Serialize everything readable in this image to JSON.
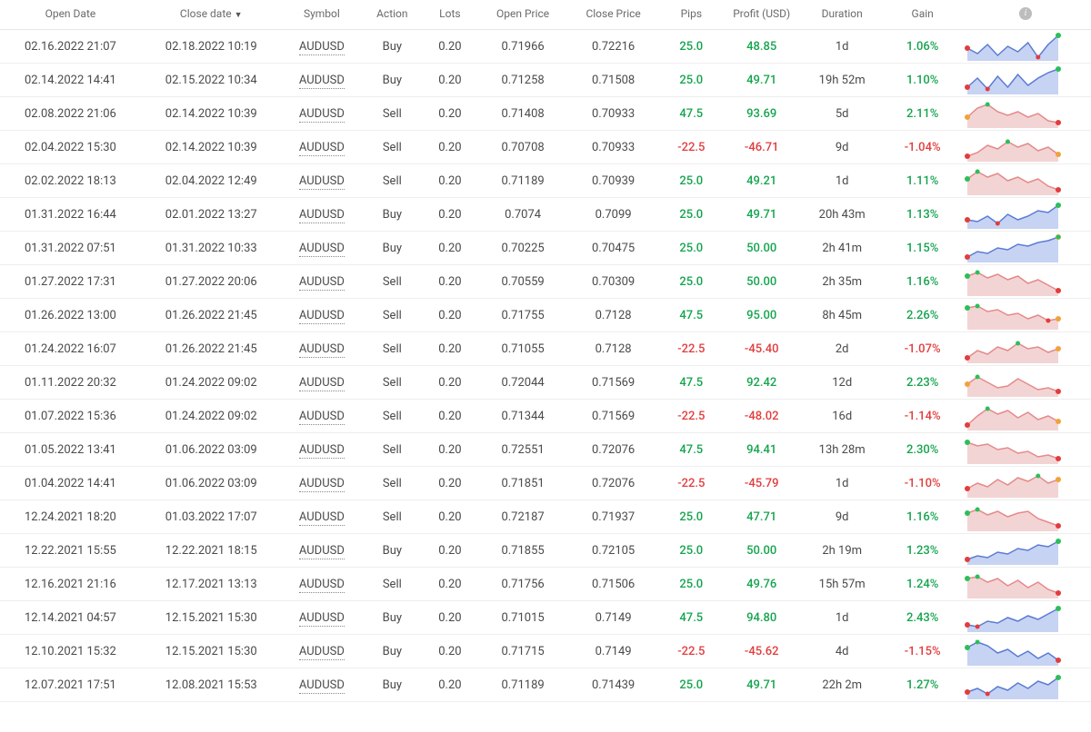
{
  "headers": {
    "open_date": "Open Date",
    "close_date": "Close date",
    "symbol": "Symbol",
    "action": "Action",
    "lots": "Lots",
    "open_price": "Open Price",
    "close_price": "Close Price",
    "pips": "Pips",
    "profit": "Profit (USD)",
    "duration": "Duration",
    "gain": "Gain",
    "sort_indicator": "▼"
  },
  "style": {
    "pos_color": "#14a44d",
    "neg_color": "#e23c3c",
    "spark_buy_stroke": "#5b7bd5",
    "spark_buy_fill": "#c7d3f2",
    "spark_sell_stroke": "#e58a8a",
    "spark_sell_fill": "#f3d4d4",
    "spark_dot_green": "#2bbf5a",
    "spark_dot_red": "#e23c3c",
    "spark_dot_orange": "#f2a23a",
    "row_border": "#eeeeee",
    "font_size_body": 13,
    "font_size_header": 12
  },
  "cols": [
    "open_date",
    "close_date",
    "symbol",
    "action",
    "lots",
    "open_price",
    "close_price",
    "pips",
    "profit",
    "duration",
    "gain"
  ],
  "rows": [
    {
      "open_date": "02.16.2022 21:07",
      "close_date": "02.18.2022 10:19",
      "symbol": "AUDUSD",
      "action": "Buy",
      "lots": "0.20",
      "open_price": "0.71966",
      "close_price": "0.72216",
      "pips": "25.0",
      "pips_cls": "pos",
      "profit": "48.85",
      "profit_cls": "pos",
      "duration": "1d",
      "gain": "1.06%",
      "gain_cls": "pos",
      "spark": {
        "type": "buy",
        "pts": [
          18,
          24,
          14,
          26,
          16,
          22,
          12,
          28,
          14,
          4
        ],
        "dot_start": "red",
        "dot_end": "green"
      }
    },
    {
      "open_date": "02.14.2022 14:41",
      "close_date": "02.15.2022 10:34",
      "symbol": "AUDUSD",
      "action": "Buy",
      "lots": "0.20",
      "open_price": "0.71258",
      "close_price": "0.71508",
      "pips": "25.0",
      "pips_cls": "pos",
      "profit": "49.71",
      "profit_cls": "pos",
      "duration": "19h 52m",
      "gain": "1.10%",
      "gain_cls": "pos",
      "spark": {
        "type": "buy",
        "pts": [
          24,
          14,
          26,
          12,
          24,
          10,
          22,
          14,
          8,
          4
        ],
        "dot_start": "red",
        "dot_end": "green"
      }
    },
    {
      "open_date": "02.08.2022 21:06",
      "close_date": "02.14.2022 10:39",
      "symbol": "AUDUSD",
      "action": "Sell",
      "lots": "0.20",
      "open_price": "0.71408",
      "close_price": "0.70933",
      "pips": "47.5",
      "pips_cls": "pos",
      "profit": "93.69",
      "profit_cls": "pos",
      "duration": "5d",
      "gain": "2.11%",
      "gain_cls": "pos",
      "spark": {
        "type": "sell",
        "pts": [
          20,
          10,
          6,
          14,
          18,
          14,
          20,
          16,
          24,
          26
        ],
        "dot_start": "orange",
        "dot_end": "red"
      }
    },
    {
      "open_date": "02.04.2022 15:30",
      "close_date": "02.14.2022 10:39",
      "symbol": "AUDUSD",
      "action": "Sell",
      "lots": "0.20",
      "open_price": "0.70708",
      "close_price": "0.70933",
      "pips": "-22.5",
      "pips_cls": "neg",
      "profit": "-46.71",
      "profit_cls": "neg",
      "duration": "9d",
      "gain": "-1.04%",
      "gain_cls": "neg",
      "spark": {
        "type": "sell",
        "pts": [
          26,
          22,
          14,
          18,
          10,
          16,
          12,
          20,
          16,
          24
        ],
        "dot_start": "red",
        "dot_end": "orange"
      }
    },
    {
      "open_date": "02.02.2022 18:13",
      "close_date": "02.04.2022 12:49",
      "symbol": "AUDUSD",
      "action": "Sell",
      "lots": "0.20",
      "open_price": "0.71189",
      "close_price": "0.70939",
      "pips": "25.0",
      "pips_cls": "pos",
      "profit": "49.21",
      "profit_cls": "pos",
      "duration": "1d",
      "gain": "1.11%",
      "gain_cls": "pos",
      "spark": {
        "type": "sell",
        "pts": [
          14,
          6,
          12,
          8,
          16,
          12,
          18,
          14,
          22,
          26
        ],
        "dot_start": "green",
        "dot_end": "red"
      }
    },
    {
      "open_date": "01.31.2022 16:44",
      "close_date": "02.01.2022 13:27",
      "symbol": "AUDUSD",
      "action": "Buy",
      "lots": "0.20",
      "open_price": "0.7074",
      "close_price": "0.7099",
      "pips": "25.0",
      "pips_cls": "pos",
      "profit": "49.71",
      "profit_cls": "pos",
      "duration": "20h 43m",
      "gain": "1.13%",
      "gain_cls": "pos",
      "spark": {
        "type": "buy",
        "pts": [
          22,
          24,
          18,
          26,
          16,
          22,
          18,
          12,
          14,
          6
        ],
        "dot_start": "red",
        "dot_end": "green"
      }
    },
    {
      "open_date": "01.31.2022 07:51",
      "close_date": "01.31.2022 10:33",
      "symbol": "AUDUSD",
      "action": "Buy",
      "lots": "0.20",
      "open_price": "0.70225",
      "close_price": "0.70475",
      "pips": "25.0",
      "pips_cls": "pos",
      "profit": "50.00",
      "profit_cls": "pos",
      "duration": "2h 41m",
      "gain": "1.15%",
      "gain_cls": "pos",
      "spark": {
        "type": "buy",
        "pts": [
          26,
          20,
          22,
          16,
          18,
          12,
          14,
          10,
          8,
          4
        ],
        "dot_start": "red",
        "dot_end": "orange"
      }
    },
    {
      "open_date": "01.27.2022 17:31",
      "close_date": "01.27.2022 20:06",
      "symbol": "AUDUSD",
      "action": "Sell",
      "lots": "0.20",
      "open_price": "0.70559",
      "close_price": "0.70309",
      "pips": "25.0",
      "pips_cls": "pos",
      "profit": "50.00",
      "profit_cls": "pos",
      "duration": "2h 35m",
      "gain": "1.16%",
      "gain_cls": "pos",
      "spark": {
        "type": "sell",
        "pts": [
          10,
          6,
          12,
          8,
          14,
          10,
          18,
          14,
          20,
          26
        ],
        "dot_start": "green",
        "dot_end": "red"
      }
    },
    {
      "open_date": "01.26.2022 13:00",
      "close_date": "01.26.2022 21:45",
      "symbol": "AUDUSD",
      "action": "Sell",
      "lots": "0.20",
      "open_price": "0.71755",
      "close_price": "0.7128",
      "pips": "47.5",
      "pips_cls": "pos",
      "profit": "95.00",
      "profit_cls": "pos",
      "duration": "8h 45m",
      "gain": "2.26%",
      "gain_cls": "pos",
      "spark": {
        "type": "sell",
        "pts": [
          8,
          6,
          12,
          10,
          16,
          14,
          20,
          16,
          22,
          20
        ],
        "dot_start": "green",
        "dot_end": "orange"
      }
    },
    {
      "open_date": "01.24.2022 16:07",
      "close_date": "01.26.2022 21:45",
      "symbol": "AUDUSD",
      "action": "Sell",
      "lots": "0.20",
      "open_price": "0.71055",
      "close_price": "0.7128",
      "pips": "-22.5",
      "pips_cls": "neg",
      "profit": "-45.40",
      "profit_cls": "neg",
      "duration": "2d",
      "gain": "-1.07%",
      "gain_cls": "neg",
      "spark": {
        "type": "sell",
        "pts": [
          26,
          18,
          22,
          14,
          18,
          10,
          16,
          14,
          20,
          16
        ],
        "dot_start": "red",
        "dot_end": "orange"
      }
    },
    {
      "open_date": "01.11.2022 20:32",
      "close_date": "01.24.2022 09:02",
      "symbol": "AUDUSD",
      "action": "Sell",
      "lots": "0.20",
      "open_price": "0.72044",
      "close_price": "0.71569",
      "pips": "47.5",
      "pips_cls": "pos",
      "profit": "92.42",
      "profit_cls": "pos",
      "duration": "12d",
      "gain": "2.23%",
      "gain_cls": "pos",
      "spark": {
        "type": "sell",
        "pts": [
          18,
          10,
          16,
          22,
          20,
          12,
          18,
          24,
          22,
          26
        ],
        "dot_start": "orange",
        "dot_end": "red"
      }
    },
    {
      "open_date": "01.07.2022 15:36",
      "close_date": "01.24.2022 09:02",
      "symbol": "AUDUSD",
      "action": "Sell",
      "lots": "0.20",
      "open_price": "0.71344",
      "close_price": "0.71569",
      "pips": "-22.5",
      "pips_cls": "neg",
      "profit": "-48.02",
      "profit_cls": "neg",
      "duration": "16d",
      "gain": "-1.14%",
      "gain_cls": "neg",
      "spark": {
        "type": "sell",
        "pts": [
          26,
          16,
          8,
          14,
          10,
          18,
          12,
          20,
          16,
          22
        ],
        "dot_start": "red",
        "dot_end": "orange"
      }
    },
    {
      "open_date": "01.05.2022 13:41",
      "close_date": "01.06.2022 03:09",
      "symbol": "AUDUSD",
      "action": "Sell",
      "lots": "0.20",
      "open_price": "0.72551",
      "close_price": "0.72076",
      "pips": "47.5",
      "pips_cls": "pos",
      "profit": "94.41",
      "profit_cls": "pos",
      "duration": "13h 28m",
      "gain": "2.30%",
      "gain_cls": "pos",
      "spark": {
        "type": "sell",
        "pts": [
          8,
          12,
          10,
          16,
          14,
          20,
          18,
          24,
          22,
          26
        ],
        "dot_start": "green",
        "dot_end": "red"
      }
    },
    {
      "open_date": "01.04.2022 14:41",
      "close_date": "01.06.2022 03:09",
      "symbol": "AUDUSD",
      "action": "Sell",
      "lots": "0.20",
      "open_price": "0.71851",
      "close_price": "0.72076",
      "pips": "-22.5",
      "pips_cls": "neg",
      "profit": "-45.79",
      "profit_cls": "neg",
      "duration": "1d",
      "gain": "-1.10%",
      "gain_cls": "neg",
      "spark": {
        "type": "sell",
        "pts": [
          22,
          16,
          20,
          12,
          18,
          10,
          14,
          8,
          16,
          12
        ],
        "dot_start": "red",
        "dot_end": "orange"
      }
    },
    {
      "open_date": "12.24.2021 18:20",
      "close_date": "01.03.2022 17:07",
      "symbol": "AUDUSD",
      "action": "Sell",
      "lots": "0.20",
      "open_price": "0.72187",
      "close_price": "0.71937",
      "pips": "25.0",
      "pips_cls": "pos",
      "profit": "47.71",
      "profit_cls": "pos",
      "duration": "9d",
      "gain": "1.16%",
      "gain_cls": "pos",
      "spark": {
        "type": "sell",
        "pts": [
          12,
          8,
          14,
          10,
          16,
          12,
          10,
          18,
          22,
          26
        ],
        "dot_start": "green",
        "dot_end": "red"
      }
    },
    {
      "open_date": "12.22.2021 15:55",
      "close_date": "12.22.2021 18:15",
      "symbol": "AUDUSD",
      "action": "Buy",
      "lots": "0.20",
      "open_price": "0.71855",
      "close_price": "0.72105",
      "pips": "25.0",
      "pips_cls": "pos",
      "profit": "50.00",
      "profit_cls": "pos",
      "duration": "2h 19m",
      "gain": "1.23%",
      "gain_cls": "pos",
      "spark": {
        "type": "buy",
        "pts": [
          26,
          22,
          24,
          18,
          20,
          14,
          16,
          10,
          12,
          6
        ],
        "dot_start": "red",
        "dot_end": "green"
      }
    },
    {
      "open_date": "12.16.2021 21:16",
      "close_date": "12.17.2021 13:13",
      "symbol": "AUDUSD",
      "action": "Sell",
      "lots": "0.20",
      "open_price": "0.71756",
      "close_price": "0.71506",
      "pips": "25.0",
      "pips_cls": "pos",
      "profit": "49.76",
      "profit_cls": "pos",
      "duration": "15h 57m",
      "gain": "1.24%",
      "gain_cls": "pos",
      "spark": {
        "type": "sell",
        "pts": [
          10,
          8,
          14,
          10,
          18,
          12,
          20,
          14,
          22,
          26
        ],
        "dot_start": "green",
        "dot_end": "red"
      }
    },
    {
      "open_date": "12.14.2021 04:57",
      "close_date": "12.15.2021 15:30",
      "symbol": "AUDUSD",
      "action": "Buy",
      "lots": "0.20",
      "open_price": "0.71015",
      "close_price": "0.7149",
      "pips": "47.5",
      "pips_cls": "pos",
      "profit": "94.80",
      "profit_cls": "pos",
      "duration": "1d",
      "gain": "2.43%",
      "gain_cls": "pos",
      "spark": {
        "type": "buy",
        "pts": [
          24,
          26,
          20,
          22,
          16,
          20,
          14,
          18,
          12,
          6
        ],
        "dot_start": "red",
        "dot_end": "green"
      }
    },
    {
      "open_date": "12.10.2021 15:32",
      "close_date": "12.15.2021 15:30",
      "symbol": "AUDUSD",
      "action": "Buy",
      "lots": "0.20",
      "open_price": "0.71715",
      "close_price": "0.7149",
      "pips": "-22.5",
      "pips_cls": "neg",
      "profit": "-45.62",
      "profit_cls": "neg",
      "duration": "4d",
      "gain": "-1.15%",
      "gain_cls": "neg",
      "spark": {
        "type": "buy",
        "pts": [
          12,
          6,
          10,
          18,
          14,
          22,
          16,
          24,
          18,
          26
        ],
        "dot_start": "green",
        "dot_end": "red"
      }
    },
    {
      "open_date": "12.07.2021 17:51",
      "close_date": "12.08.2021 15:53",
      "symbol": "AUDUSD",
      "action": "Buy",
      "lots": "0.20",
      "open_price": "0.71189",
      "close_price": "0.71439",
      "pips": "25.0",
      "pips_cls": "pos",
      "profit": "49.71",
      "profit_cls": "pos",
      "duration": "22h 2m",
      "gain": "1.27%",
      "gain_cls": "pos",
      "spark": {
        "type": "buy",
        "pts": [
          24,
          20,
          26,
          18,
          22,
          14,
          20,
          12,
          16,
          8
        ],
        "dot_start": "red",
        "dot_end": "green"
      }
    }
  ]
}
